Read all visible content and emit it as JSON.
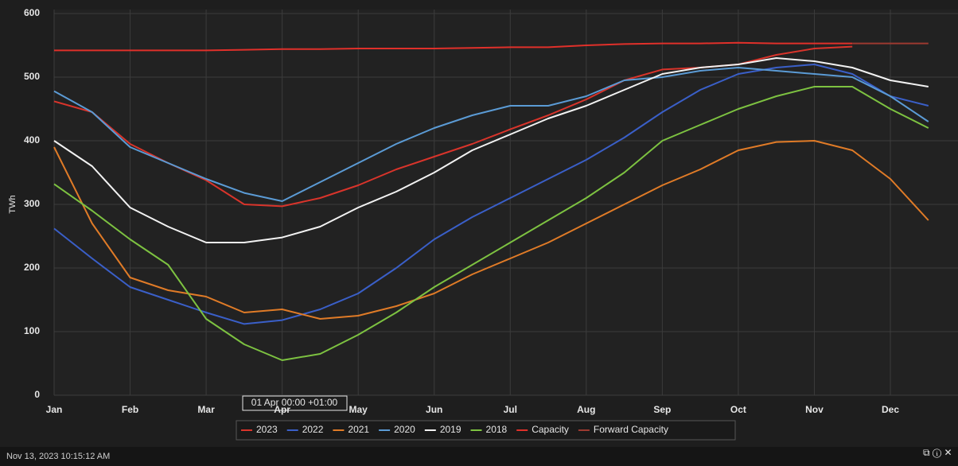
{
  "chart_data": {
    "type": "line",
    "y_label": "TWh",
    "categories": [
      "Jan",
      null,
      "Feb",
      null,
      "Mar",
      null,
      "Apr",
      null,
      "May",
      null,
      "Jun",
      null,
      "Jul",
      null,
      "Aug",
      null,
      "Sep",
      null,
      "Oct",
      null,
      "Nov",
      null,
      "Dec",
      null
    ],
    "series": [
      {
        "name": "2023",
        "color": "#d9342b",
        "values": [
          462,
          445,
          395,
          365,
          338,
          300,
          297,
          310,
          330,
          355,
          375,
          395,
          418,
          440,
          465,
          495,
          512,
          515,
          520,
          535,
          545,
          548,
          null,
          null
        ]
      },
      {
        "name": "2022",
        "color": "#3a5fc8",
        "values": [
          262,
          215,
          170,
          150,
          130,
          112,
          118,
          135,
          160,
          200,
          245,
          280,
          310,
          340,
          370,
          405,
          445,
          480,
          505,
          515,
          520,
          505,
          470,
          455
        ]
      },
      {
        "name": "2021",
        "color": "#e07b27",
        "values": [
          390,
          270,
          185,
          165,
          155,
          130,
          135,
          120,
          125,
          140,
          160,
          190,
          215,
          240,
          270,
          300,
          330,
          355,
          385,
          398,
          400,
          385,
          340,
          275
        ]
      },
      {
        "name": "2020",
        "color": "#5b9bd5",
        "values": [
          478,
          445,
          390,
          365,
          340,
          318,
          305,
          335,
          365,
          395,
          420,
          440,
          455,
          455,
          470,
          495,
          500,
          510,
          515,
          510,
          505,
          500,
          470,
          430
        ]
      },
      {
        "name": "2019",
        "color": "#f2f2f2",
        "values": [
          400,
          360,
          295,
          265,
          240,
          240,
          248,
          265,
          295,
          320,
          350,
          385,
          410,
          435,
          455,
          480,
          505,
          515,
          520,
          530,
          525,
          515,
          495,
          485
        ]
      },
      {
        "name": "2018",
        "color": "#7dc241",
        "values": [
          332,
          290,
          245,
          205,
          120,
          80,
          55,
          65,
          95,
          130,
          170,
          205,
          240,
          275,
          310,
          350,
          400,
          425,
          450,
          470,
          485,
          485,
          450,
          420
        ]
      },
      {
        "name": "Capacity",
        "color": "#e0302a",
        "values": [
          542,
          542,
          542,
          542,
          542,
          543,
          544,
          544,
          545,
          545,
          545,
          546,
          547,
          547,
          550,
          552,
          553,
          553,
          554,
          553,
          553,
          553,
          null,
          null
        ]
      },
      {
        "name": "Forward Capacity",
        "color": "#9c3a30",
        "values": [
          null,
          null,
          null,
          null,
          null,
          null,
          null,
          null,
          null,
          null,
          null,
          null,
          null,
          null,
          null,
          null,
          null,
          null,
          null,
          null,
          null,
          553,
          553,
          553
        ]
      }
    ],
    "ylim": [
      0,
      600
    ],
    "yticks": [
      0,
      100,
      200,
      300,
      400,
      500,
      600
    ],
    "grid": true,
    "annotation": "01 Apr 00:00 +01:00",
    "footer": "Nov 13, 2023 10:15:12 AM"
  }
}
